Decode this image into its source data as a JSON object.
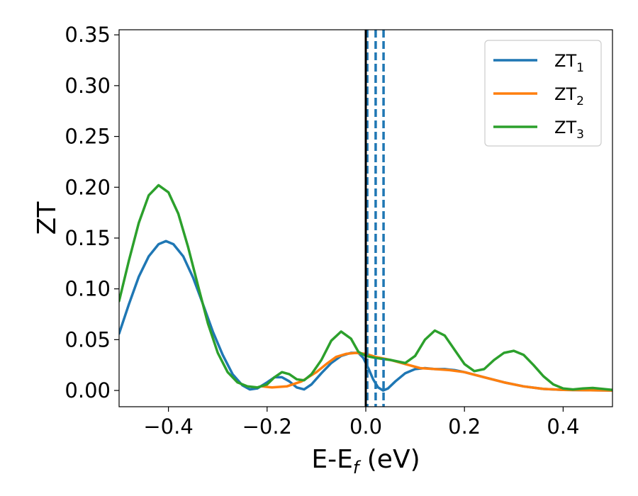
{
  "chart_data": {
    "type": "line",
    "xlabel": "E-E",
    "xlabel_sub": "f",
    "xlabel_unit": " (eV)",
    "ylabel": "ZT",
    "xlim": [
      -0.5,
      0.5
    ],
    "ylim": [
      -0.016,
      0.355
    ],
    "x_ticks": [
      -0.4,
      -0.2,
      0.0,
      0.2,
      0.4
    ],
    "x_tick_labels": [
      "−0.4",
      "−0.2",
      "0.0",
      "0.2",
      "0.4"
    ],
    "y_ticks": [
      0.0,
      0.05,
      0.1,
      0.15,
      0.2,
      0.25,
      0.3,
      0.35
    ],
    "y_tick_labels": [
      "0.00",
      "0.05",
      "0.10",
      "0.15",
      "0.20",
      "0.25",
      "0.30",
      "0.35"
    ],
    "grid": false,
    "legend_position": "top-right",
    "fermi_level_line": {
      "x": 0.0,
      "color": "#000000"
    },
    "dashed_lines": {
      "x": [
        0.003,
        0.02,
        0.036
      ],
      "color": "#1f77b4"
    },
    "series": [
      {
        "name": "ZT",
        "sub": "1",
        "color": "#1f77b4",
        "points": [
          [
            -0.5,
            0.056
          ],
          [
            -0.48,
            0.085
          ],
          [
            -0.46,
            0.112
          ],
          [
            -0.44,
            0.132
          ],
          [
            -0.42,
            0.144
          ],
          [
            -0.405,
            0.147
          ],
          [
            -0.39,
            0.144
          ],
          [
            -0.37,
            0.132
          ],
          [
            -0.35,
            0.111
          ],
          [
            -0.33,
            0.085
          ],
          [
            -0.31,
            0.058
          ],
          [
            -0.29,
            0.035
          ],
          [
            -0.27,
            0.016
          ],
          [
            -0.25,
            0.005
          ],
          [
            -0.235,
            0.001
          ],
          [
            -0.22,
            0.002
          ],
          [
            -0.2,
            0.008
          ],
          [
            -0.185,
            0.013
          ],
          [
            -0.17,
            0.013
          ],
          [
            -0.155,
            0.009
          ],
          [
            -0.14,
            0.003
          ],
          [
            -0.125,
            0.001
          ],
          [
            -0.11,
            0.006
          ],
          [
            -0.09,
            0.017
          ],
          [
            -0.07,
            0.027
          ],
          [
            -0.05,
            0.034
          ],
          [
            -0.03,
            0.037
          ],
          [
            -0.015,
            0.037
          ],
          [
            -0.005,
            0.032
          ],
          [
            0.005,
            0.022
          ],
          [
            0.015,
            0.011
          ],
          [
            0.025,
            0.003
          ],
          [
            0.035,
            0.0
          ],
          [
            0.045,
            0.002
          ],
          [
            0.06,
            0.009
          ],
          [
            0.08,
            0.017
          ],
          [
            0.1,
            0.021
          ],
          [
            0.12,
            0.022
          ],
          [
            0.14,
            0.021
          ],
          [
            0.16,
            0.021
          ],
          [
            0.18,
            0.02
          ],
          [
            0.2,
            0.018
          ],
          [
            0.24,
            0.013
          ],
          [
            0.28,
            0.008
          ],
          [
            0.32,
            0.004
          ],
          [
            0.36,
            0.0015
          ],
          [
            0.4,
            0.0005
          ],
          [
            0.44,
            0.0003
          ],
          [
            0.5,
            0.0
          ]
        ]
      },
      {
        "name": "ZT",
        "sub": "2",
        "color": "#ff7f0e",
        "points": [
          [
            -0.21,
            0.004
          ],
          [
            -0.19,
            0.003
          ],
          [
            -0.16,
            0.004
          ],
          [
            -0.13,
            0.009
          ],
          [
            -0.1,
            0.018
          ],
          [
            -0.08,
            0.026
          ],
          [
            -0.06,
            0.033
          ],
          [
            -0.04,
            0.036
          ],
          [
            -0.02,
            0.037
          ],
          [
            0.0,
            0.036
          ],
          [
            0.02,
            0.033
          ],
          [
            0.05,
            0.03
          ],
          [
            0.08,
            0.026
          ],
          [
            0.11,
            0.022
          ],
          [
            0.14,
            0.021
          ],
          [
            0.17,
            0.02
          ],
          [
            0.2,
            0.018
          ],
          [
            0.24,
            0.013
          ],
          [
            0.28,
            0.008
          ],
          [
            0.32,
            0.004
          ],
          [
            0.36,
            0.0015
          ],
          [
            0.4,
            0.0005
          ],
          [
            0.44,
            0.0003
          ],
          [
            0.5,
            0.0
          ]
        ]
      },
      {
        "name": "ZT",
        "sub": "3",
        "color": "#2ca02c",
        "points": [
          [
            -0.5,
            0.088
          ],
          [
            -0.48,
            0.128
          ],
          [
            -0.46,
            0.165
          ],
          [
            -0.44,
            0.192
          ],
          [
            -0.42,
            0.202
          ],
          [
            -0.4,
            0.195
          ],
          [
            -0.38,
            0.174
          ],
          [
            -0.36,
            0.141
          ],
          [
            -0.34,
            0.103
          ],
          [
            -0.32,
            0.066
          ],
          [
            -0.3,
            0.037
          ],
          [
            -0.28,
            0.018
          ],
          [
            -0.26,
            0.008
          ],
          [
            -0.24,
            0.004
          ],
          [
            -0.22,
            0.003
          ],
          [
            -0.2,
            0.006
          ],
          [
            -0.185,
            0.013
          ],
          [
            -0.17,
            0.018
          ],
          [
            -0.155,
            0.016
          ],
          [
            -0.14,
            0.011
          ],
          [
            -0.125,
            0.01
          ],
          [
            -0.11,
            0.016
          ],
          [
            -0.09,
            0.03
          ],
          [
            -0.07,
            0.049
          ],
          [
            -0.05,
            0.058
          ],
          [
            -0.03,
            0.051
          ],
          [
            -0.015,
            0.038
          ],
          [
            0.0,
            0.034
          ],
          [
            0.02,
            0.032
          ],
          [
            0.05,
            0.03
          ],
          [
            0.08,
            0.027
          ],
          [
            0.1,
            0.034
          ],
          [
            0.12,
            0.05
          ],
          [
            0.14,
            0.059
          ],
          [
            0.16,
            0.054
          ],
          [
            0.18,
            0.04
          ],
          [
            0.2,
            0.026
          ],
          [
            0.22,
            0.019
          ],
          [
            0.24,
            0.021
          ],
          [
            0.26,
            0.03
          ],
          [
            0.28,
            0.037
          ],
          [
            0.3,
            0.039
          ],
          [
            0.32,
            0.035
          ],
          [
            0.34,
            0.025
          ],
          [
            0.36,
            0.014
          ],
          [
            0.38,
            0.006
          ],
          [
            0.4,
            0.002
          ],
          [
            0.42,
            0.001
          ],
          [
            0.44,
            0.002
          ],
          [
            0.46,
            0.0025
          ],
          [
            0.48,
            0.0015
          ],
          [
            0.5,
            0.0005
          ]
        ]
      }
    ]
  }
}
